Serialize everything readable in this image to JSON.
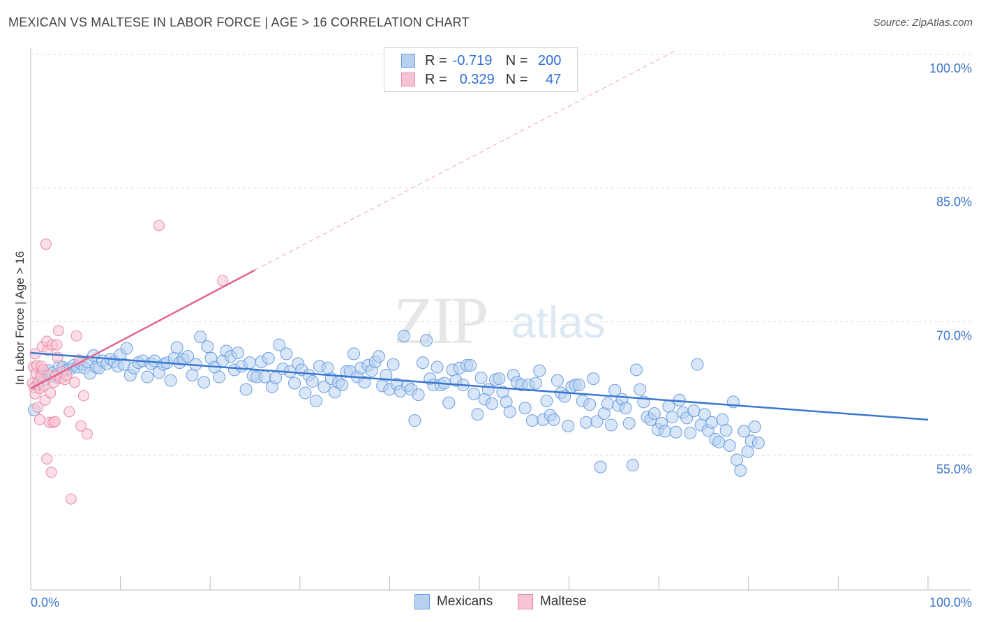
{
  "title": "MEXICAN VS MALTESE IN LABOR FORCE | AGE > 16 CORRELATION CHART",
  "source": "Source: ZipAtlas.com",
  "watermark": {
    "zip": "ZIP",
    "atlas": "atlas"
  },
  "legend": {
    "rows": [
      {
        "r_label": "R =",
        "r_value": "-0.719",
        "n_label": "N =",
        "n_value": "200"
      },
      {
        "r_label": "R =",
        "r_value": "0.329",
        "n_label": "N =",
        "n_value": "47"
      }
    ]
  },
  "colors": {
    "blue": "#3a77d0",
    "blue_fill": "#b8d1f1",
    "pink": "#e2658e",
    "pink_fill": "#f8c3d2",
    "axis_text": "#3b73c8"
  },
  "chart_data": {
    "type": "scatter",
    "title": "MEXICAN VS MALTESE IN LABOR FORCE | AGE > 16 CORRELATION CHART",
    "xlabel": "",
    "ylabel": "In Labor Force | Age > 16",
    "xlim": [
      0,
      100
    ],
    "ylim": [
      40,
      100
    ],
    "x_tick_labels": [
      "0.0%",
      "100.0%"
    ],
    "y_ticks": [
      55,
      70,
      85,
      100
    ],
    "y_tick_labels": [
      "55.0%",
      "70.0%",
      "85.0%",
      "100.0%"
    ],
    "grid": true,
    "legend_position": "bottom-center",
    "series": [
      {
        "name": "Mexicans",
        "R": -0.719,
        "N": 200,
        "trend": {
          "x": [
            0,
            100
          ],
          "y": [
            66.5,
            59.0
          ]
        },
        "points": [
          [
            0.4,
            60.1
          ],
          [
            0.8,
            63.0
          ],
          [
            1.2,
            64.0
          ],
          [
            1.6,
            63.5
          ],
          [
            2.0,
            64.5
          ],
          [
            2.4,
            64.2
          ],
          [
            2.8,
            63.8
          ],
          [
            3.2,
            65.0
          ],
          [
            3.6,
            64.9
          ],
          [
            4.0,
            64.6
          ],
          [
            4.4,
            64.7
          ],
          [
            4.8,
            65.1
          ],
          [
            5.2,
            64.9
          ],
          [
            5.6,
            65.3
          ],
          [
            6.0,
            64.8
          ],
          [
            6.3,
            65.5
          ],
          [
            6.6,
            64.2
          ],
          [
            7.0,
            66.2
          ],
          [
            7.3,
            64.9
          ],
          [
            7.6,
            64.8
          ],
          [
            8.0,
            65.6
          ],
          [
            8.5,
            65.3
          ],
          [
            8.9,
            65.8
          ],
          [
            9.3,
            65.5
          ],
          [
            9.7,
            65.0
          ],
          [
            10.0,
            66.3
          ],
          [
            10.4,
            65.2
          ],
          [
            10.7,
            67.0
          ],
          [
            11.1,
            64.0
          ],
          [
            11.5,
            64.8
          ],
          [
            12.0,
            65.4
          ],
          [
            12.5,
            65.6
          ],
          [
            13.0,
            63.8
          ],
          [
            13.4,
            65.3
          ],
          [
            13.8,
            65.6
          ],
          [
            14.3,
            64.3
          ],
          [
            14.8,
            65.2
          ],
          [
            15.2,
            65.4
          ],
          [
            15.6,
            63.4
          ],
          [
            16.0,
            65.9
          ],
          [
            16.3,
            67.1
          ],
          [
            16.6,
            65.4
          ],
          [
            17.0,
            65.8
          ],
          [
            17.5,
            66.1
          ],
          [
            18.0,
            64.0
          ],
          [
            18.4,
            65.2
          ],
          [
            18.9,
            68.3
          ],
          [
            19.3,
            63.2
          ],
          [
            19.7,
            67.2
          ],
          [
            20.1,
            65.9
          ],
          [
            20.5,
            64.9
          ],
          [
            21.0,
            63.8
          ],
          [
            21.4,
            65.6
          ],
          [
            21.8,
            66.7
          ],
          [
            22.3,
            66.1
          ],
          [
            22.7,
            64.6
          ],
          [
            23.1,
            66.5
          ],
          [
            23.5,
            65.0
          ],
          [
            24.0,
            62.4
          ],
          [
            24.4,
            65.4
          ],
          [
            24.8,
            63.9
          ],
          [
            25.2,
            63.8
          ],
          [
            25.7,
            65.5
          ],
          [
            26.1,
            63.8
          ],
          [
            26.5,
            65.9
          ],
          [
            26.9,
            62.7
          ],
          [
            27.3,
            63.7
          ],
          [
            27.7,
            67.4
          ],
          [
            28.1,
            64.7
          ],
          [
            28.5,
            66.4
          ],
          [
            28.9,
            64.4
          ],
          [
            29.4,
            63.1
          ],
          [
            29.8,
            65.3
          ],
          [
            30.2,
            64.6
          ],
          [
            30.6,
            62.0
          ],
          [
            31.0,
            64.0
          ],
          [
            31.4,
            63.3
          ],
          [
            31.8,
            61.1
          ],
          [
            32.2,
            65.0
          ],
          [
            32.7,
            62.7
          ],
          [
            33.1,
            64.8
          ],
          [
            33.5,
            63.6
          ],
          [
            33.9,
            62.1
          ],
          [
            34.3,
            63.2
          ],
          [
            34.7,
            62.9
          ],
          [
            35.2,
            64.4
          ],
          [
            35.6,
            64.4
          ],
          [
            36.0,
            66.4
          ],
          [
            36.4,
            63.8
          ],
          [
            36.8,
            64.8
          ],
          [
            37.2,
            63.2
          ],
          [
            37.6,
            65.1
          ],
          [
            38.0,
            64.5
          ],
          [
            38.4,
            65.5
          ],
          [
            38.8,
            66.1
          ],
          [
            39.2,
            62.8
          ],
          [
            39.6,
            64.0
          ],
          [
            40.0,
            62.4
          ],
          [
            40.4,
            65.2
          ],
          [
            40.8,
            63.0
          ],
          [
            41.2,
            62.2
          ],
          [
            41.6,
            68.4
          ],
          [
            42.0,
            62.8
          ],
          [
            42.4,
            62.4
          ],
          [
            42.8,
            58.9
          ],
          [
            43.2,
            61.8
          ],
          [
            43.7,
            65.4
          ],
          [
            44.1,
            67.9
          ],
          [
            44.5,
            63.6
          ],
          [
            44.9,
            62.9
          ],
          [
            45.3,
            64.9
          ],
          [
            45.7,
            62.9
          ],
          [
            46.1,
            63.1
          ],
          [
            46.6,
            60.9
          ],
          [
            47.0,
            64.6
          ],
          [
            47.4,
            63.4
          ],
          [
            47.8,
            64.8
          ],
          [
            48.2,
            62.9
          ],
          [
            48.6,
            65.1
          ],
          [
            49.0,
            65.1
          ],
          [
            49.4,
            61.9
          ],
          [
            49.8,
            59.6
          ],
          [
            50.2,
            63.7
          ],
          [
            50.6,
            61.3
          ],
          [
            51.0,
            62.4
          ],
          [
            51.4,
            60.8
          ],
          [
            51.8,
            63.5
          ],
          [
            52.2,
            63.6
          ],
          [
            52.6,
            62.1
          ],
          [
            53.0,
            61.0
          ],
          [
            53.4,
            59.9
          ],
          [
            53.8,
            64.0
          ],
          [
            54.2,
            63.2
          ],
          [
            54.7,
            62.9
          ],
          [
            55.1,
            60.3
          ],
          [
            55.5,
            62.9
          ],
          [
            55.9,
            58.9
          ],
          [
            56.3,
            63.1
          ],
          [
            56.7,
            64.5
          ],
          [
            57.1,
            59.0
          ],
          [
            57.5,
            61.1
          ],
          [
            57.9,
            59.5
          ],
          [
            58.3,
            59.0
          ],
          [
            58.7,
            63.4
          ],
          [
            59.1,
            62.0
          ],
          [
            59.5,
            61.6
          ],
          [
            59.9,
            58.3
          ],
          [
            60.3,
            62.7
          ],
          [
            60.7,
            62.9
          ],
          [
            61.1,
            62.9
          ],
          [
            61.5,
            61.1
          ],
          [
            61.9,
            58.7
          ],
          [
            62.3,
            60.7
          ],
          [
            62.7,
            63.6
          ],
          [
            63.1,
            58.8
          ],
          [
            63.5,
            53.7
          ],
          [
            63.9,
            59.7
          ],
          [
            64.3,
            60.8
          ],
          [
            64.7,
            58.4
          ],
          [
            65.1,
            62.3
          ],
          [
            65.5,
            60.6
          ],
          [
            65.9,
            61.3
          ],
          [
            66.3,
            60.3
          ],
          [
            66.7,
            58.6
          ],
          [
            67.1,
            53.9
          ],
          [
            67.5,
            64.6
          ],
          [
            67.9,
            62.4
          ],
          [
            68.3,
            61.0
          ],
          [
            68.7,
            59.3
          ],
          [
            69.1,
            59.0
          ],
          [
            69.5,
            59.7
          ],
          [
            69.9,
            57.9
          ],
          [
            70.3,
            58.6
          ],
          [
            70.7,
            57.7
          ],
          [
            71.1,
            60.5
          ],
          [
            71.5,
            59.3
          ],
          [
            71.9,
            57.6
          ],
          [
            72.3,
            61.2
          ],
          [
            72.7,
            59.8
          ],
          [
            73.1,
            59.2
          ],
          [
            73.5,
            57.5
          ],
          [
            73.9,
            60.0
          ],
          [
            74.3,
            65.2
          ],
          [
            74.7,
            58.4
          ],
          [
            75.1,
            59.6
          ],
          [
            75.5,
            57.8
          ],
          [
            75.9,
            58.7
          ],
          [
            76.3,
            56.8
          ],
          [
            76.7,
            56.5
          ],
          [
            77.1,
            59.0
          ],
          [
            77.5,
            57.8
          ],
          [
            77.9,
            56.1
          ],
          [
            78.3,
            61.0
          ],
          [
            78.7,
            54.5
          ],
          [
            79.1,
            53.3
          ],
          [
            79.5,
            57.7
          ],
          [
            79.9,
            55.4
          ],
          [
            80.3,
            56.6
          ],
          [
            80.7,
            58.2
          ],
          [
            81.1,
            56.4
          ]
        ]
      },
      {
        "name": "Maltese",
        "R": 0.329,
        "N": 47,
        "trend": {
          "x": [
            0,
            25
          ],
          "y": [
            62.5,
            75.8
          ]
        },
        "trend_extrapolated": {
          "x": [
            25,
            72
          ],
          "y": [
            75.8,
            100.5
          ]
        },
        "points": [
          [
            0.2,
            63.1
          ],
          [
            0.3,
            64.9
          ],
          [
            0.4,
            62.6
          ],
          [
            0.5,
            66.4
          ],
          [
            0.5,
            61.9
          ],
          [
            0.6,
            64.2
          ],
          [
            0.7,
            65.1
          ],
          [
            0.8,
            60.4
          ],
          [
            0.9,
            63.3
          ],
          [
            1.0,
            62.5
          ],
          [
            1.0,
            59.0
          ],
          [
            1.1,
            63.8
          ],
          [
            1.2,
            65.0
          ],
          [
            1.3,
            67.2
          ],
          [
            1.4,
            64.6
          ],
          [
            1.5,
            62.8
          ],
          [
            1.6,
            61.2
          ],
          [
            1.7,
            78.7
          ],
          [
            1.8,
            67.8
          ],
          [
            1.8,
            54.6
          ],
          [
            1.9,
            66.8
          ],
          [
            2.0,
            64.0
          ],
          [
            2.1,
            58.7
          ],
          [
            2.2,
            62.0
          ],
          [
            2.3,
            53.1
          ],
          [
            2.4,
            67.4
          ],
          [
            2.5,
            58.7
          ],
          [
            2.6,
            63.2
          ],
          [
            2.7,
            58.8
          ],
          [
            2.8,
            64.0
          ],
          [
            2.9,
            67.4
          ],
          [
            3.0,
            66.0
          ],
          [
            3.1,
            69.0
          ],
          [
            3.3,
            63.6
          ],
          [
            3.5,
            64.4
          ],
          [
            3.8,
            63.5
          ],
          [
            4.0,
            64.0
          ],
          [
            4.3,
            59.9
          ],
          [
            4.5,
            50.1
          ],
          [
            4.9,
            63.2
          ],
          [
            5.1,
            68.4
          ],
          [
            5.4,
            65.7
          ],
          [
            5.6,
            58.3
          ],
          [
            5.9,
            61.7
          ],
          [
            6.3,
            57.4
          ],
          [
            14.3,
            80.8
          ],
          [
            21.4,
            74.6
          ]
        ]
      }
    ]
  }
}
